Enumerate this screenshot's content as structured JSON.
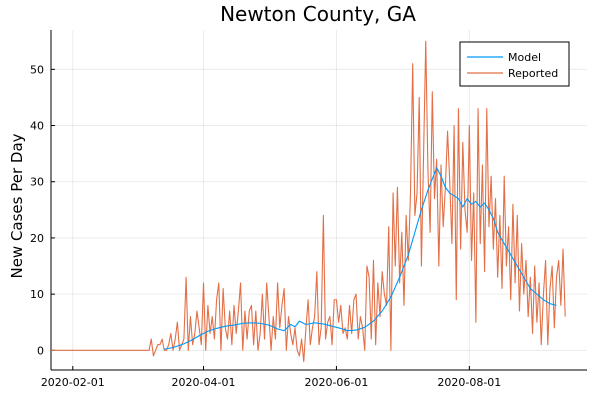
{
  "chart_data": {
    "type": "line",
    "title": "Newton County, GA",
    "xlabel": "",
    "ylabel": "New Cases Per Day",
    "x_axis_type": "date",
    "xlim": [
      "2020-01-22",
      "2020-09-24"
    ],
    "ylim": [
      -3.5,
      57
    ],
    "xticks": [
      "2020-02-01",
      "2020-04-01",
      "2020-06-01",
      "2020-08-01"
    ],
    "yticks": [
      0,
      10,
      20,
      30,
      40,
      50
    ],
    "grid": true,
    "legend_position": "top-right",
    "series": [
      {
        "name": "Model",
        "color": "#009af9",
        "points": [
          [
            "2020-03-14",
            0.2
          ],
          [
            "2020-03-18",
            0.5
          ],
          [
            "2020-03-22",
            1.0
          ],
          [
            "2020-03-26",
            1.7
          ],
          [
            "2020-03-30",
            2.6
          ],
          [
            "2020-04-03",
            3.4
          ],
          [
            "2020-04-07",
            3.9
          ],
          [
            "2020-04-11",
            4.3
          ],
          [
            "2020-04-15",
            4.5
          ],
          [
            "2020-04-19",
            4.8
          ],
          [
            "2020-04-23",
            4.9
          ],
          [
            "2020-04-27",
            4.8
          ],
          [
            "2020-05-01",
            4.5
          ],
          [
            "2020-05-05",
            3.8
          ],
          [
            "2020-05-08",
            3.5
          ],
          [
            "2020-05-11",
            4.6
          ],
          [
            "2020-05-13",
            4.2
          ],
          [
            "2020-05-15",
            5.2
          ],
          [
            "2020-05-18",
            4.6
          ],
          [
            "2020-05-22",
            4.9
          ],
          [
            "2020-05-26",
            4.7
          ],
          [
            "2020-05-30",
            4.3
          ],
          [
            "2020-06-03",
            3.9
          ],
          [
            "2020-06-06",
            3.5
          ],
          [
            "2020-06-10",
            3.6
          ],
          [
            "2020-06-14",
            4.1
          ],
          [
            "2020-06-18",
            5.2
          ],
          [
            "2020-06-22",
            7.0
          ],
          [
            "2020-06-26",
            9.5
          ],
          [
            "2020-06-30",
            13.0
          ],
          [
            "2020-07-04",
            17.0
          ],
          [
            "2020-07-07",
            21.0
          ],
          [
            "2020-07-10",
            25.0
          ],
          [
            "2020-07-13",
            28.5
          ],
          [
            "2020-07-15",
            30.5
          ],
          [
            "2020-07-17",
            32.5
          ],
          [
            "2020-07-19",
            31.0
          ],
          [
            "2020-07-21",
            29.0
          ],
          [
            "2020-07-23",
            28.0
          ],
          [
            "2020-07-25",
            27.5
          ],
          [
            "2020-07-27",
            27.0
          ],
          [
            "2020-07-29",
            25.5
          ],
          [
            "2020-07-31",
            27.0
          ],
          [
            "2020-08-02",
            26.0
          ],
          [
            "2020-08-04",
            26.5
          ],
          [
            "2020-08-06",
            25.5
          ],
          [
            "2020-08-08",
            26.2
          ],
          [
            "2020-08-10",
            25.0
          ],
          [
            "2020-08-12",
            23.5
          ],
          [
            "2020-08-14",
            21.0
          ],
          [
            "2020-08-17",
            19.0
          ],
          [
            "2020-08-20",
            17.0
          ],
          [
            "2020-08-23",
            15.0
          ],
          [
            "2020-08-26",
            13.0
          ],
          [
            "2020-08-29",
            11.0
          ],
          [
            "2020-09-01",
            10.0
          ],
          [
            "2020-09-04",
            9.0
          ],
          [
            "2020-09-07",
            8.3
          ],
          [
            "2020-09-10",
            8.0
          ]
        ]
      },
      {
        "name": "Reported",
        "color": "#e26f46",
        "points": [
          [
            "2020-01-22",
            0
          ],
          [
            "2020-03-07",
            0
          ],
          [
            "2020-03-08",
            2
          ],
          [
            "2020-03-09",
            -1
          ],
          [
            "2020-03-10",
            0
          ],
          [
            "2020-03-11",
            1
          ],
          [
            "2020-03-12",
            1
          ],
          [
            "2020-03-13",
            2
          ],
          [
            "2020-03-14",
            0
          ],
          [
            "2020-03-15",
            0
          ],
          [
            "2020-03-16",
            1
          ],
          [
            "2020-03-17",
            3
          ],
          [
            "2020-03-18",
            0
          ],
          [
            "2020-03-19",
            2
          ],
          [
            "2020-03-20",
            5
          ],
          [
            "2020-03-21",
            0
          ],
          [
            "2020-03-22",
            1
          ],
          [
            "2020-03-23",
            2
          ],
          [
            "2020-03-24",
            13
          ],
          [
            "2020-03-25",
            0
          ],
          [
            "2020-03-26",
            6
          ],
          [
            "2020-03-27",
            1
          ],
          [
            "2020-03-28",
            3
          ],
          [
            "2020-03-29",
            7
          ],
          [
            "2020-03-30",
            4
          ],
          [
            "2020-03-31",
            1
          ],
          [
            "2020-04-01",
            12
          ],
          [
            "2020-04-02",
            0
          ],
          [
            "2020-04-03",
            8
          ],
          [
            "2020-04-04",
            3
          ],
          [
            "2020-04-05",
            6
          ],
          [
            "2020-04-06",
            2
          ],
          [
            "2020-04-07",
            9
          ],
          [
            "2020-04-08",
            12
          ],
          [
            "2020-04-09",
            0
          ],
          [
            "2020-04-10",
            11
          ],
          [
            "2020-04-11",
            4
          ],
          [
            "2020-04-12",
            2
          ],
          [
            "2020-04-13",
            7
          ],
          [
            "2020-04-14",
            1
          ],
          [
            "2020-04-15",
            8
          ],
          [
            "2020-04-16",
            3
          ],
          [
            "2020-04-17",
            7
          ],
          [
            "2020-04-18",
            12
          ],
          [
            "2020-04-19",
            0
          ],
          [
            "2020-04-20",
            7
          ],
          [
            "2020-04-21",
            2
          ],
          [
            "2020-04-22",
            7
          ],
          [
            "2020-04-23",
            8
          ],
          [
            "2020-04-24",
            1
          ],
          [
            "2020-04-25",
            7
          ],
          [
            "2020-04-26",
            0
          ],
          [
            "2020-04-27",
            3
          ],
          [
            "2020-04-28",
            10
          ],
          [
            "2020-04-29",
            2
          ],
          [
            "2020-04-30",
            12
          ],
          [
            "2020-05-01",
            6
          ],
          [
            "2020-05-02",
            0
          ],
          [
            "2020-05-03",
            6
          ],
          [
            "2020-05-04",
            2
          ],
          [
            "2020-05-05",
            12
          ],
          [
            "2020-05-06",
            4
          ],
          [
            "2020-05-07",
            8
          ],
          [
            "2020-05-08",
            11
          ],
          [
            "2020-05-09",
            0
          ],
          [
            "2020-05-10",
            6
          ],
          [
            "2020-05-11",
            3
          ],
          [
            "2020-05-12",
            1
          ],
          [
            "2020-05-13",
            4
          ],
          [
            "2020-05-14",
            0
          ],
          [
            "2020-05-15",
            -1
          ],
          [
            "2020-05-16",
            2
          ],
          [
            "2020-05-17",
            -2
          ],
          [
            "2020-05-18",
            4
          ],
          [
            "2020-05-19",
            9
          ],
          [
            "2020-05-20",
            1
          ],
          [
            "2020-05-21",
            4
          ],
          [
            "2020-05-22",
            6
          ],
          [
            "2020-05-23",
            14
          ],
          [
            "2020-05-24",
            1
          ],
          [
            "2020-05-25",
            4
          ],
          [
            "2020-05-26",
            24
          ],
          [
            "2020-05-27",
            2
          ],
          [
            "2020-05-28",
            5
          ],
          [
            "2020-05-29",
            6
          ],
          [
            "2020-05-30",
            1
          ],
          [
            "2020-05-31",
            9
          ],
          [
            "2020-06-01",
            9
          ],
          [
            "2020-06-02",
            5
          ],
          [
            "2020-06-03",
            8
          ],
          [
            "2020-06-04",
            3
          ],
          [
            "2020-06-05",
            4
          ],
          [
            "2020-06-06",
            2
          ],
          [
            "2020-06-07",
            8
          ],
          [
            "2020-06-08",
            3
          ],
          [
            "2020-06-09",
            9
          ],
          [
            "2020-06-10",
            10
          ],
          [
            "2020-06-11",
            2
          ],
          [
            "2020-06-12",
            6
          ],
          [
            "2020-06-13",
            4
          ],
          [
            "2020-06-14",
            0
          ],
          [
            "2020-06-15",
            15
          ],
          [
            "2020-06-16",
            13
          ],
          [
            "2020-06-17",
            2
          ],
          [
            "2020-06-18",
            16
          ],
          [
            "2020-06-19",
            1
          ],
          [
            "2020-06-20",
            12
          ],
          [
            "2020-06-21",
            6
          ],
          [
            "2020-06-22",
            14
          ],
          [
            "2020-06-23",
            10
          ],
          [
            "2020-06-24",
            8
          ],
          [
            "2020-06-25",
            22
          ],
          [
            "2020-06-26",
            0
          ],
          [
            "2020-06-27",
            28
          ],
          [
            "2020-06-28",
            15
          ],
          [
            "2020-06-29",
            29
          ],
          [
            "2020-06-30",
            12
          ],
          [
            "2020-07-01",
            21
          ],
          [
            "2020-07-02",
            8
          ],
          [
            "2020-07-03",
            24
          ],
          [
            "2020-07-04",
            16
          ],
          [
            "2020-07-05",
            28
          ],
          [
            "2020-07-06",
            51
          ],
          [
            "2020-07-07",
            24
          ],
          [
            "2020-07-08",
            28
          ],
          [
            "2020-07-09",
            45
          ],
          [
            "2020-07-10",
            15
          ],
          [
            "2020-07-11",
            35
          ],
          [
            "2020-07-12",
            55
          ],
          [
            "2020-07-13",
            32
          ],
          [
            "2020-07-14",
            21
          ],
          [
            "2020-07-15",
            46
          ],
          [
            "2020-07-16",
            27
          ],
          [
            "2020-07-17",
            34
          ],
          [
            "2020-07-18",
            15
          ],
          [
            "2020-07-19",
            33
          ],
          [
            "2020-07-20",
            22
          ],
          [
            "2020-07-21",
            29
          ],
          [
            "2020-07-22",
            39
          ],
          [
            "2020-07-23",
            30
          ],
          [
            "2020-07-24",
            19
          ],
          [
            "2020-07-25",
            40
          ],
          [
            "2020-07-26",
            9
          ],
          [
            "2020-07-27",
            43
          ],
          [
            "2020-07-28",
            18
          ],
          [
            "2020-07-29",
            37
          ],
          [
            "2020-07-30",
            25
          ],
          [
            "2020-07-31",
            21
          ],
          [
            "2020-08-01",
            40
          ],
          [
            "2020-08-02",
            16
          ],
          [
            "2020-08-03",
            28
          ],
          [
            "2020-08-04",
            5
          ],
          [
            "2020-08-05",
            43
          ],
          [
            "2020-08-06",
            19
          ],
          [
            "2020-08-07",
            33
          ],
          [
            "2020-08-08",
            14
          ],
          [
            "2020-08-09",
            43
          ],
          [
            "2020-08-10",
            22
          ],
          [
            "2020-08-11",
            31
          ],
          [
            "2020-08-12",
            18
          ],
          [
            "2020-08-13",
            27
          ],
          [
            "2020-08-14",
            13
          ],
          [
            "2020-08-15",
            24
          ],
          [
            "2020-08-16",
            11
          ],
          [
            "2020-08-17",
            31
          ],
          [
            "2020-08-18",
            15
          ],
          [
            "2020-08-19",
            22
          ],
          [
            "2020-08-20",
            9
          ],
          [
            "2020-08-21",
            26
          ],
          [
            "2020-08-22",
            12
          ],
          [
            "2020-08-23",
            24
          ],
          [
            "2020-08-24",
            7
          ],
          [
            "2020-08-25",
            19
          ],
          [
            "2020-08-26",
            10
          ],
          [
            "2020-08-27",
            16
          ],
          [
            "2020-08-28",
            6
          ],
          [
            "2020-08-29",
            13
          ],
          [
            "2020-08-30",
            3
          ],
          [
            "2020-08-31",
            15
          ],
          [
            "2020-09-01",
            5
          ],
          [
            "2020-09-02",
            12
          ],
          [
            "2020-09-03",
            1
          ],
          [
            "2020-09-04",
            10
          ],
          [
            "2020-09-05",
            16
          ],
          [
            "2020-09-06",
            1
          ],
          [
            "2020-09-07",
            11
          ],
          [
            "2020-09-08",
            15
          ],
          [
            "2020-09-09",
            4
          ],
          [
            "2020-09-10",
            13
          ],
          [
            "2020-09-11",
            16
          ],
          [
            "2020-09-12",
            8
          ],
          [
            "2020-09-13",
            18
          ],
          [
            "2020-09-14",
            6
          ]
        ]
      }
    ]
  }
}
